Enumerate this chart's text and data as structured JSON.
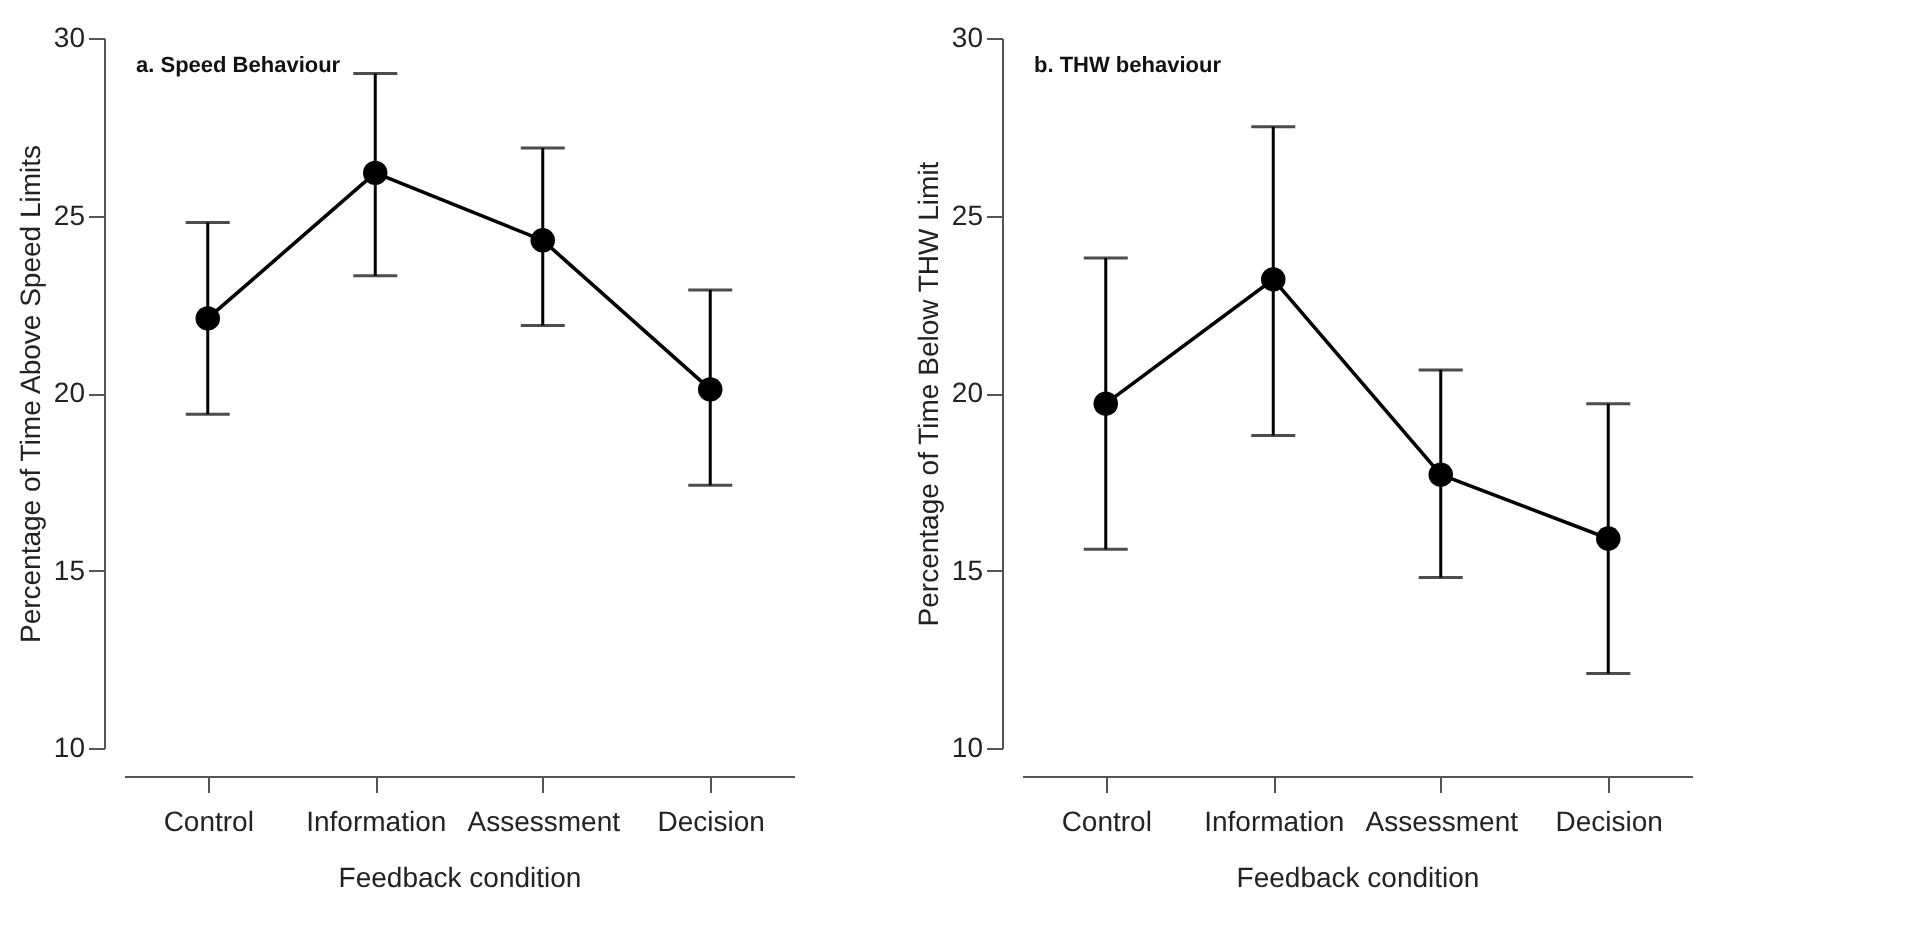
{
  "chart_data": [
    {
      "type": "line",
      "title": "a. Speed Behaviour",
      "xlabel": "Feedback condition",
      "ylabel": "Percentage of Time Above Speed Limits",
      "categories": [
        "Control",
        "Information",
        "Assessment",
        "Decision"
      ],
      "series": [
        {
          "color": "#000000",
          "values": [
            22.1,
            26.2,
            24.3,
            20.1
          ],
          "errors": [
            [
              19.4,
              24.8
            ],
            [
              23.3,
              29.0
            ],
            [
              21.9,
              26.9
            ],
            [
              17.4,
              22.9
            ]
          ]
        }
      ],
      "ylim": [
        10,
        30
      ],
      "yticks": [
        10,
        15,
        20,
        25,
        30
      ],
      "marker": "circle",
      "line_style": "solid"
    },
    {
      "type": "line",
      "title": "b. THW behaviour",
      "xlabel": "Feedback condition",
      "ylabel": "Percentage of Time Below THW Limit",
      "categories": [
        "Control",
        "Information",
        "Assessment",
        "Decision"
      ],
      "series": [
        {
          "color": "#000000",
          "values": [
            19.7,
            23.2,
            17.7,
            15.9
          ],
          "errors": [
            [
              15.6,
              23.8
            ],
            [
              18.8,
              27.5
            ],
            [
              14.8,
              20.65
            ],
            [
              12.1,
              19.7
            ]
          ]
        }
      ],
      "ylim": [
        10,
        30
      ],
      "yticks": [
        10,
        15,
        20,
        25,
        30
      ],
      "marker": "circle",
      "line_style": "solid"
    }
  ]
}
